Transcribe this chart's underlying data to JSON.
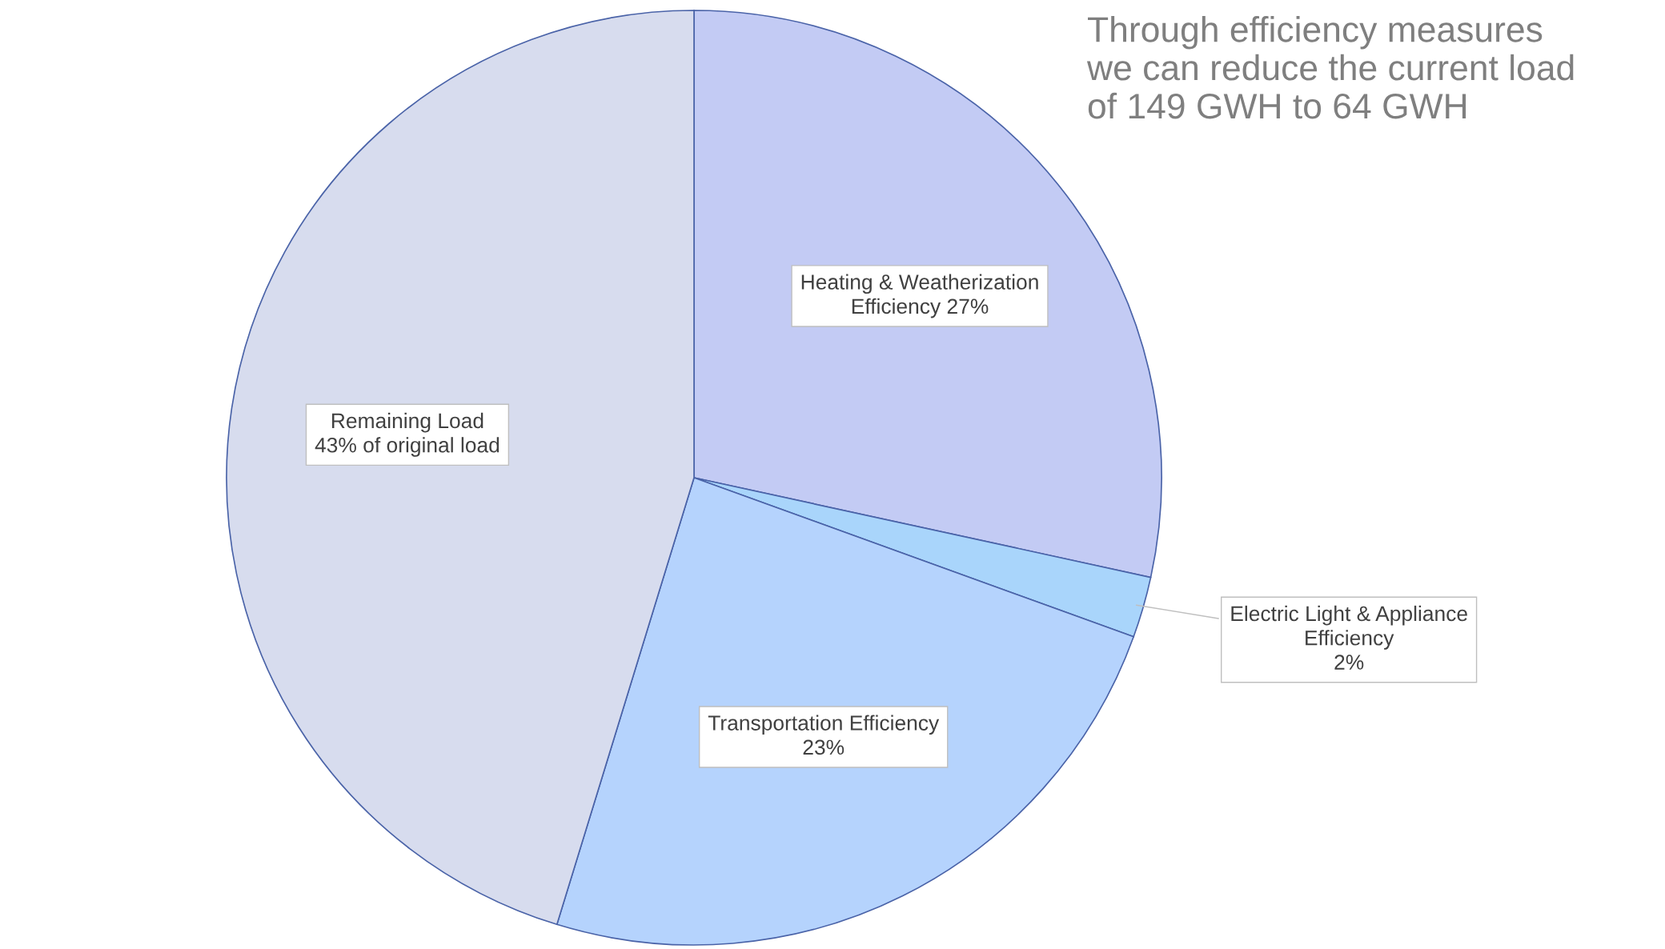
{
  "chart_data": {
    "type": "pie",
    "title": "Through efficiency measures\nwe can reduce the current load\nof 149 GWH to 64 GWH",
    "categories": [
      "Heating & Weatherization\nEfficiency",
      "Electric Light & Appliance\nEfficiency",
      "Transportation Efficiency",
      "Remaining Load"
    ],
    "values": [
      27,
      2,
      23,
      43
    ],
    "value_labels": [
      "27%",
      "2%",
      "23%",
      "43% of original load"
    ],
    "colors": [
      "#c3cbf4",
      "#a9d5fb",
      "#b5d3fd",
      "#d7dcee"
    ],
    "legend": false
  }
}
